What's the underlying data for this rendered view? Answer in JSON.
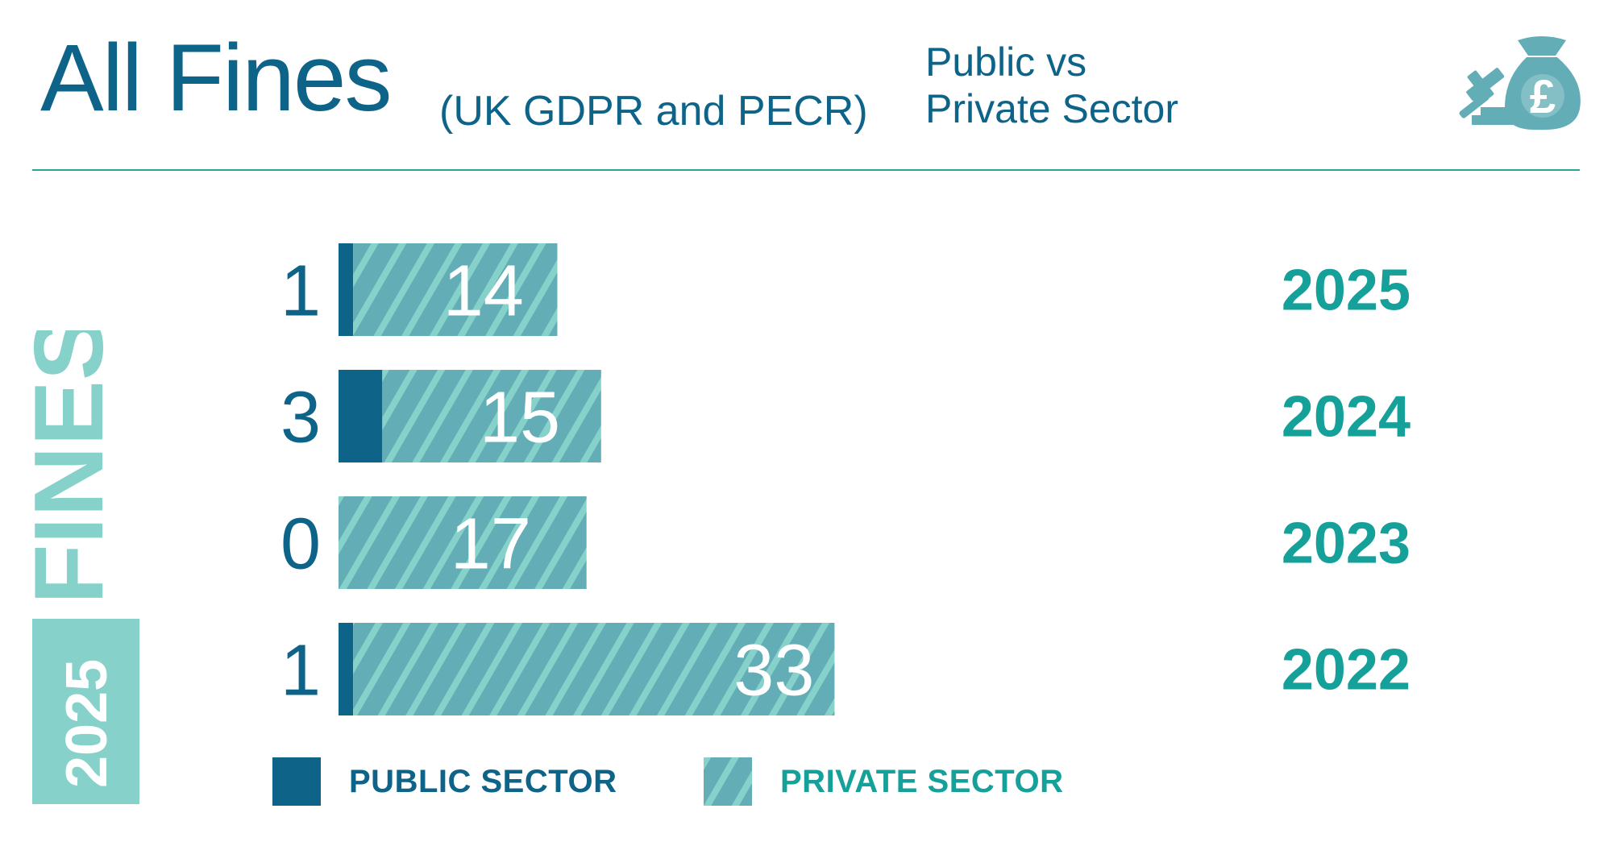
{
  "header": {
    "title": "All Fines",
    "subtitle": "(UK GDPR and PECR)",
    "side_title_line1": "Public vs",
    "side_title_line2": "Private Sector",
    "icon": "gavel-money-bag-icon"
  },
  "side_label": {
    "fines": "FINES",
    "year": "2025"
  },
  "colors": {
    "public": "#0e6389",
    "private": "#63adb7",
    "private_stripe": "#86d2ca",
    "year": "#16a09a",
    "accent": "#86d2ca"
  },
  "legend": {
    "public_label": "PUBLIC SECTOR",
    "private_label": "PRIVATE SECTOR"
  },
  "chart_data": {
    "type": "bar",
    "orientation": "horizontal",
    "stacked": true,
    "title": "All Fines",
    "subtitle": "(UK GDPR and PECR)",
    "categories": [
      "2025",
      "2024",
      "2023",
      "2022"
    ],
    "series": [
      {
        "name": "PUBLIC SECTOR",
        "values": [
          1,
          3,
          0,
          1
        ]
      },
      {
        "name": "PRIVATE SECTOR",
        "values": [
          14,
          15,
          17,
          33
        ]
      }
    ],
    "xlim": [
      0,
      34
    ],
    "grid": false,
    "legend": "bottom-left"
  }
}
